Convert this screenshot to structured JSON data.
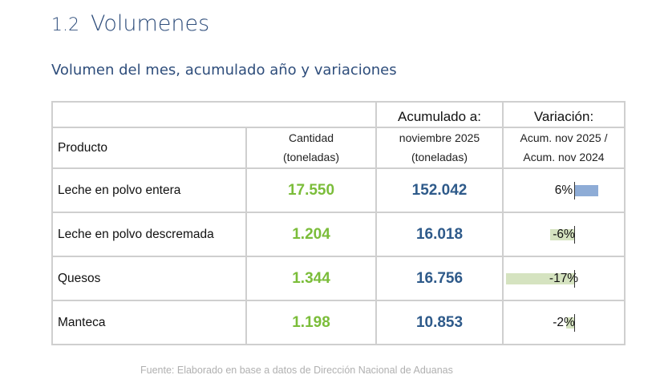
{
  "section": {
    "number": "1.2",
    "title": "Volumenes"
  },
  "subtitle": "Volumen del mes, acumulado año y variaciones",
  "table": {
    "header": {
      "acumulado_title": "Acumulado a:",
      "variacion_title": "Variación:",
      "producto": "Producto",
      "cantidad": "Cantidad",
      "cantidad_unit": "(toneladas)",
      "acumulado_period": "noviembre 2025",
      "acumulado_unit": "(toneladas)",
      "variacion_line1": "Acum. nov 2025 /",
      "variacion_line2": "Acum. nov 2024"
    },
    "rows": [
      {
        "producto": "Leche en polvo entera",
        "cantidad": "17.550",
        "acumulado": "152.042",
        "variacion": "6%",
        "variacion_value": 6
      },
      {
        "producto": "Leche en polvo descremada",
        "cantidad": "1.204",
        "acumulado": "16.018",
        "variacion": "-6%",
        "variacion_value": -6
      },
      {
        "producto": "Quesos",
        "cantidad": "1.344",
        "acumulado": "16.756",
        "variacion": "-17%",
        "variacion_value": -17
      },
      {
        "producto": "Manteca",
        "cantidad": "1.198",
        "acumulado": "10.853",
        "variacion": "-2%",
        "variacion_value": -2
      }
    ]
  },
  "colors": {
    "positive_bar": "#8eacd6",
    "negative_bar": "#d5e3c0",
    "cantidad_text": "#7bbd3a",
    "acumulado_text": "#2e5a8a",
    "heading": "#2e4d7b"
  },
  "source": "Fuente: Elaborado en base a datos de Dirección Nacional de Aduanas"
}
